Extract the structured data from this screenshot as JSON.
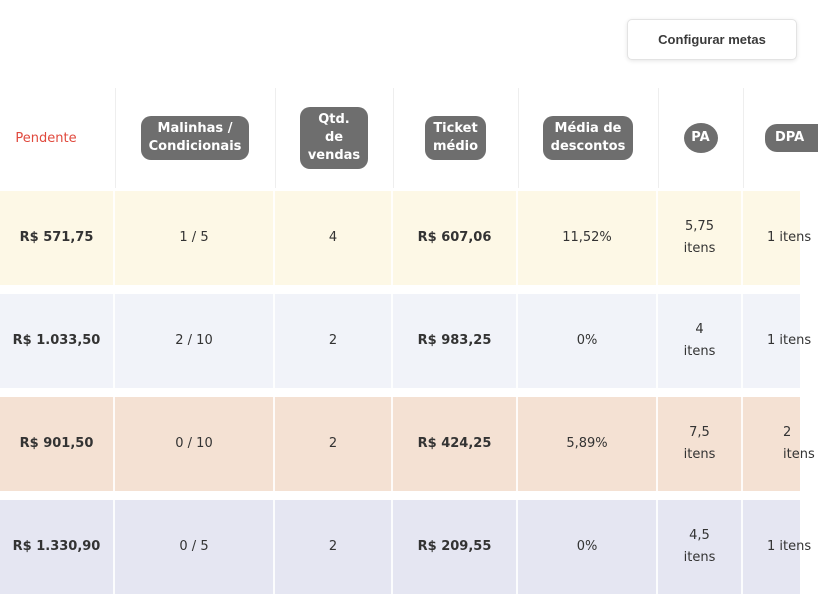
{
  "toolbar": {
    "config_label": "Configurar metas"
  },
  "headers": {
    "pendente": "Pendente",
    "malinhas": "Malinhas /\nCondicionais",
    "qtd": "Qtd.\nde\nvendas",
    "ticket": "Ticket\nmédio",
    "descontos": "Média de\ndescontos",
    "pa": "PA",
    "dpa": "DPA"
  },
  "rows": [
    {
      "bg": "#fdf8e6",
      "pendente": "R$ 571,75",
      "malinhas": "1 / 5",
      "qtd": "4",
      "ticket": "R$ 607,06",
      "descontos": "11,52%",
      "pa": "5,75\nitens",
      "dpa": "1 itens"
    },
    {
      "bg": "#f1f3f9",
      "pendente": "R$ 1.033,50",
      "malinhas": "2 / 10",
      "qtd": "2",
      "ticket": "R$ 983,25",
      "descontos": "0%",
      "pa": "4\nitens",
      "dpa": "1 itens"
    },
    {
      "bg": "#f4e1d3",
      "pendente": "R$ 901,50",
      "malinhas": "0 / 10",
      "qtd": "2",
      "ticket": "R$ 424,25",
      "descontos": "5,89%",
      "pa": "7,5\nitens",
      "dpa": "2\nitens"
    },
    {
      "bg": "#e5e6f2",
      "pendente": "R$ 1.330,90",
      "malinhas": "0 / 5",
      "qtd": "2",
      "ticket": "R$ 209,55",
      "descontos": "0%",
      "pa": "4,5\nitens",
      "dpa": "1 itens"
    }
  ]
}
